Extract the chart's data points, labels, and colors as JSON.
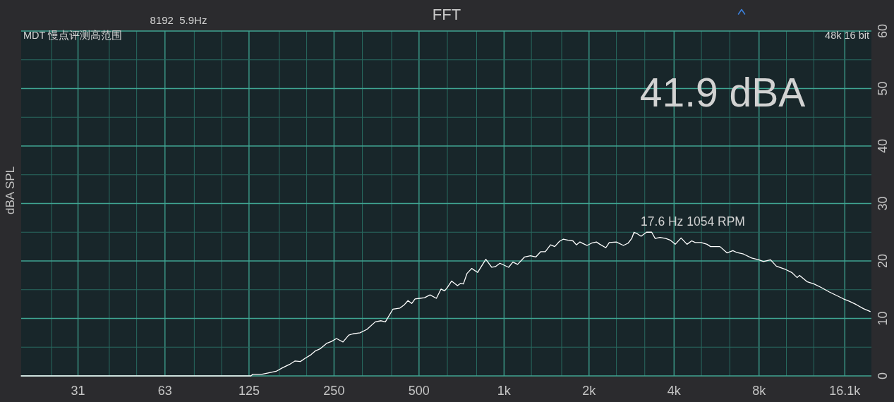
{
  "chart_data": {
    "type": "line",
    "title": "FFT",
    "ylabel": "dBA SPL",
    "annotations": [
      "8192  5.9Hz",
      "MDT 慢点评测高范围",
      "48k 16 bit",
      "41.9 dBA",
      "17.6 Hz 1054 RPM"
    ],
    "log": "x",
    "grid": true,
    "xlim": [
      19.5,
      20000
    ],
    "ylim": [
      0,
      60
    ],
    "xticks": [
      {
        "value": 25,
        "label": null
      },
      31,
      {
        "value": 40,
        "label": null
      },
      {
        "value": 50,
        "label": null
      },
      63,
      {
        "value": 80,
        "label": null
      },
      {
        "value": 100,
        "label": null
      },
      125,
      {
        "value": 160,
        "label": null
      },
      {
        "value": 200,
        "label": null
      },
      250,
      {
        "value": 315,
        "label": null
      },
      {
        "value": 400,
        "label": null
      },
      500,
      {
        "value": 630,
        "label": null
      },
      {
        "value": 800,
        "label": null
      },
      {
        "value": 1000,
        "label": "1k"
      },
      {
        "value": 1250,
        "label": null
      },
      {
        "value": 1600,
        "label": null
      },
      {
        "value": 2000,
        "label": "2k"
      },
      {
        "value": 2500,
        "label": null
      },
      {
        "value": 3150,
        "label": null
      },
      {
        "value": 4000,
        "label": "4k"
      },
      {
        "value": 5000,
        "label": null
      },
      {
        "value": 6300,
        "label": null
      },
      {
        "value": 8000,
        "label": "8k"
      },
      {
        "value": 10000,
        "label": null
      },
      {
        "value": 12500,
        "label": null
      },
      {
        "value": 16100,
        "label": "16.1k"
      }
    ],
    "yticks": [
      0,
      {
        "value": 5,
        "label": null
      },
      10,
      {
        "value": 15,
        "label": null
      },
      20,
      {
        "value": 25,
        "label": null
      },
      30,
      {
        "value": 35,
        "label": null
      },
      40,
      {
        "value": 45,
        "label": null
      },
      50,
      {
        "value": 55,
        "label": null
      },
      60
    ],
    "x": [
      19.5,
      127,
      129,
      139,
      146,
      156,
      164,
      174,
      182,
      190,
      198,
      206,
      214,
      223,
      236,
      245,
      255,
      262,
      269,
      282,
      291,
      309,
      327,
      350,
      367,
      380,
      404,
      428,
      444,
      457,
      471,
      484,
      503,
      523,
      547,
      576,
      598,
      616,
      628,
      652,
      684,
      702,
      718,
      739,
      768,
      806,
      862,
      904,
      931,
      967,
      1038,
      1075,
      1117,
      1183,
      1241,
      1297,
      1347,
      1400,
      1461,
      1512,
      1571,
      1623,
      1687,
      1753,
      1804,
      1857,
      1911,
      1967,
      2044,
      2124,
      2185,
      2293,
      2359,
      2499,
      2647,
      2751,
      2832,
      2886,
      2971,
      3057,
      3196,
      3333,
      3430,
      3565,
      3740,
      3886,
      4039,
      4237,
      4445,
      4620,
      4754,
      4987,
      5235,
      5385,
      5815,
      6160,
      6462,
      6652,
      7046,
      7537,
      7983,
      8296,
      8785,
      9215,
      9951,
      10446,
      10914,
      11129,
      11826,
      12525,
      13265,
      14188,
      14750,
      15925,
      16700,
      17688,
      18738,
      19790
    ],
    "series": [
      {
        "color": "#ffffff",
        "values": [
          0,
          0,
          0.3,
          0.3,
          0.5,
          0.8,
          1.4,
          2.0,
          2.6,
          2.5,
          3.1,
          3.6,
          4.3,
          4.7,
          5.7,
          6.0,
          6.5,
          6.2,
          5.9,
          7.1,
          7.3,
          7.5,
          8.1,
          9.4,
          9.6,
          9.4,
          11.6,
          11.8,
          12.4,
          13.1,
          12.6,
          13.4,
          13.5,
          13.6,
          14.1,
          13.5,
          15.1,
          14.8,
          15.3,
          16.5,
          15.7,
          16.1,
          16.0,
          17.8,
          18.7,
          18.0,
          20.3,
          18.9,
          19.0,
          19.6,
          18.9,
          19.8,
          19.4,
          20.7,
          20.9,
          20.7,
          21.6,
          21.6,
          22.8,
          22.5,
          23.4,
          23.8,
          23.6,
          23.5,
          22.8,
          23.3,
          23.0,
          22.7,
          23.1,
          23.3,
          22.9,
          22.3,
          23.2,
          23.3,
          22.7,
          23.1,
          23.9,
          25.0,
          24.7,
          24.3,
          25.0,
          25.0,
          23.9,
          24.1,
          23.9,
          23.6,
          22.9,
          24.0,
          22.9,
          23.5,
          23.2,
          23.2,
          22.9,
          22.5,
          22.5,
          21.4,
          21.8,
          21.5,
          21.2,
          20.5,
          20.2,
          19.9,
          20.2,
          19.1,
          18.5,
          18.0,
          17.1,
          17.5,
          16.4,
          16.0,
          15.4,
          14.6,
          14.2,
          13.4,
          13.0,
          12.4,
          11.7,
          11.2
        ]
      }
    ]
  }
}
